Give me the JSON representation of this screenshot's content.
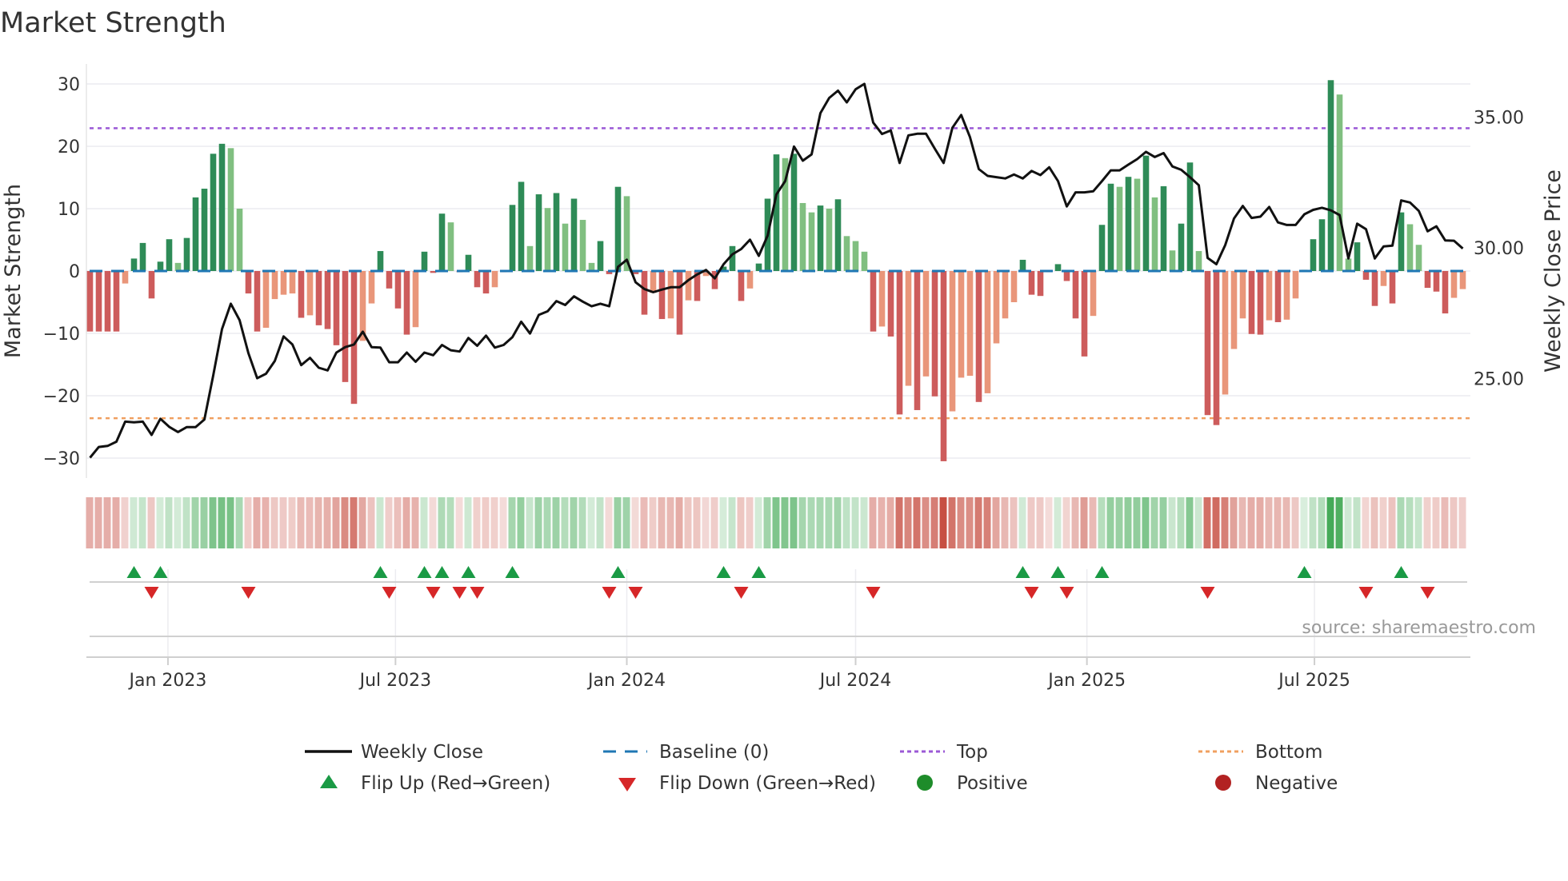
{
  "chart_data": {
    "type": "bar",
    "title": "Market Strength",
    "ylabel": "Market Strength",
    "y2label": "Weekly Close Price",
    "ylim": [
      -33.2,
      33.2
    ],
    "y2lim": [
      21.19,
      37.03
    ],
    "first_week": "2022-10-31",
    "yticks": [
      {
        "v": 30,
        "label": "30"
      },
      {
        "v": 20,
        "label": "20"
      },
      {
        "v": 10,
        "label": "10"
      },
      {
        "v": 0,
        "label": "0"
      },
      {
        "v": -10,
        "label": "−10"
      },
      {
        "v": -20,
        "label": "−20"
      },
      {
        "v": -30,
        "label": "−30"
      }
    ],
    "y2ticks": [
      {
        "v": 35,
        "label": "35.00"
      },
      {
        "v": 30,
        "label": "30.00"
      },
      {
        "v": 25,
        "label": "25.00"
      }
    ],
    "xticks": [
      {
        "date": "2023-01-01",
        "label": "Jan 2023"
      },
      {
        "date": "2023-07-01",
        "label": "Jul 2023"
      },
      {
        "date": "2024-01-01",
        "label": "Jan 2024"
      },
      {
        "date": "2024-07-01",
        "label": "Jul 2024"
      },
      {
        "date": "2025-01-01",
        "label": "Jan 2025"
      },
      {
        "date": "2025-07-01",
        "label": "Jul 2025"
      }
    ],
    "top_level": 22.9,
    "bottom_level": -23.6,
    "strength": [
      -9.7,
      -9.7,
      -9.7,
      -9.7,
      -2,
      2,
      4.5,
      -4.4,
      1.5,
      5.1,
      1.3,
      5.3,
      11.8,
      13.2,
      18.8,
      20.4,
      19.7,
      10,
      -3.6,
      -9.7,
      -9.1,
      -4.5,
      -3.8,
      -3.6,
      -7.5,
      -7.1,
      -8.7,
      -9.3,
      -11.9,
      -17.8,
      -21.3,
      -11.2,
      -5.2,
      3.2,
      -2.8,
      -6,
      -10.2,
      -9,
      3.1,
      -0.3,
      9.2,
      7.8,
      -0.2,
      2.6,
      -2.6,
      -3.6,
      -2.6,
      -0.2,
      10.6,
      14.3,
      4,
      12.3,
      10.1,
      12.5,
      7.6,
      11.6,
      8.2,
      1.3,
      4.8,
      -0.5,
      13.5,
      12,
      -0.5,
      -7,
      -3.5,
      -7.7,
      -7.6,
      -10.2,
      -4.7,
      -4.8,
      -0.8,
      -2.9,
      0.7,
      4,
      -4.8,
      -2.8,
      1.2,
      11.6,
      18.7,
      18.1,
      18.8,
      10.9,
      9.4,
      10.5,
      10,
      11.5,
      5.6,
      4.8,
      3.1,
      -9.7,
      -8.9,
      -10.5,
      -23,
      -18.4,
      -22.3,
      -16.9,
      -20.1,
      -30.5,
      -22.5,
      -17.1,
      -16.8,
      -21,
      -19.6,
      -11.6,
      -7.6,
      -5,
      1.8,
      -3.8,
      -4,
      -0.2,
      1.1,
      -1.6,
      -7.6,
      -13.7,
      -7.2,
      7.4,
      14,
      13.5,
      15.1,
      14.8,
      18.5,
      11.8,
      13.6,
      3.3,
      7.6,
      17.4,
      3.2,
      -23.1,
      -24.7,
      -19.8,
      -12.5,
      -7.6,
      -10.1,
      -10.2,
      -7.9,
      -8.2,
      -7.8,
      -4.4,
      0.2,
      5.1,
      8.3,
      30.6,
      28.3,
      2,
      4.6,
      -1.4,
      -5.6,
      -2.4,
      -5.2,
      9.4,
      7.5,
      4.2,
      -2.7,
      -3.3,
      -6.8,
      -4.3,
      -2.9
    ],
    "weekly_close": [
      21.97,
      22.38,
      22.42,
      22.58,
      23.35,
      23.32,
      23.35,
      22.84,
      23.46,
      23.15,
      22.95,
      23.14,
      23.14,
      23.43,
      25.11,
      26.89,
      27.86,
      27.23,
      25.97,
      25.01,
      25.18,
      25.67,
      26.61,
      26.3,
      25.51,
      25.79,
      25.41,
      25.31,
      25.99,
      26.2,
      26.3,
      26.79,
      26.2,
      26.18,
      25.62,
      25.62,
      25.99,
      25.64,
      25.99,
      25.89,
      26.28,
      26.08,
      26.03,
      26.55,
      26.25,
      26.64,
      26.18,
      26.28,
      26.58,
      27.17,
      26.72,
      27.43,
      27.57,
      27.96,
      27.81,
      28.14,
      27.94,
      27.76,
      27.86,
      27.76,
      29.27,
      29.54,
      28.68,
      28.42,
      28.3,
      28.4,
      28.49,
      28.49,
      28.76,
      28.98,
      29.15,
      28.83,
      29.37,
      29.75,
      29.95,
      30.31,
      29.69,
      30.46,
      32.04,
      32.55,
      33.87,
      33.33,
      33.57,
      35.15,
      35.73,
      36.01,
      35.56,
      36.06,
      36.27,
      34.79,
      34.35,
      34.49,
      33.24,
      34.3,
      34.36,
      34.36,
      33.79,
      33.24,
      34.59,
      35.08,
      34.23,
      33.01,
      32.75,
      32.7,
      32.65,
      32.8,
      32.65,
      32.94,
      32.78,
      33.08,
      32.55,
      31.58,
      32.12,
      32.12,
      32.16,
      32.55,
      32.96,
      32.96,
      33.18,
      33.39,
      33.67,
      33.47,
      33.62,
      33.11,
      32.98,
      32.7,
      32.39,
      29.61,
      29.37,
      30.1,
      31.12,
      31.6,
      31.14,
      31.19,
      31.56,
      30.97,
      30.87,
      30.87,
      31.28,
      31.45,
      31.53,
      31.43,
      31.25,
      29.59,
      30.92,
      30.71,
      29.59,
      30.05,
      30.08,
      31.81,
      31.73,
      31.41,
      30.63,
      30.82,
      30.28,
      30.27,
      29.97
    ],
    "flip_up_weeks": [
      5,
      8,
      33,
      38,
      40,
      43,
      48,
      60,
      72,
      76,
      106,
      110,
      115,
      138,
      149
    ],
    "flip_down_weeks": [
      7,
      18,
      34,
      39,
      42,
      44,
      59,
      62,
      74,
      89,
      107,
      111,
      127,
      145,
      152
    ],
    "legend": {
      "weekly_close": "Weekly Close",
      "baseline": "Baseline (0)",
      "top": "Top",
      "bottom": "Bottom",
      "flip_up": "Flip Up (Red→Green)",
      "flip_down": "Flip Down (Green→Red)",
      "positive": "Positive",
      "negative": "Negative"
    },
    "legend_placement": "bottom",
    "colors": {
      "strong_pos": "#2e8b57",
      "weak_pos": "#80bf80",
      "strong_neg": "#cd5c5c",
      "weak_neg": "#e9967a",
      "line": "#111111",
      "baseline": "#1f77b4",
      "top": "#9b59d6",
      "bottom": "#f0a060",
      "flip_up": "#1a9a45",
      "flip_down": "#d62728",
      "positive_dot": "#1e8c2a",
      "negative_dot": "#b22222"
    },
    "source": "source: sharemaestro.com"
  }
}
